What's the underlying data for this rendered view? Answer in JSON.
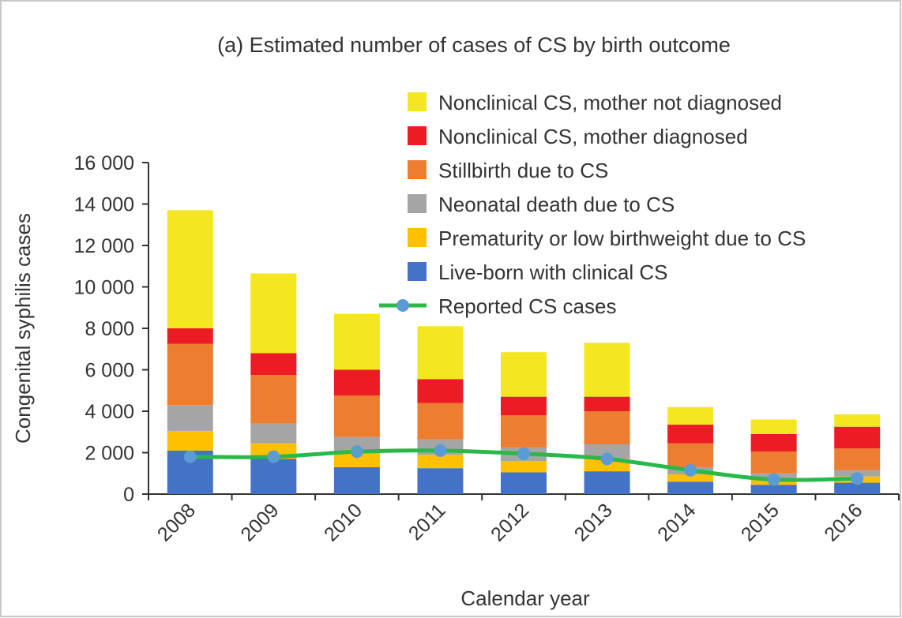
{
  "chart_data": {
    "type": "bar",
    "stacked": true,
    "title": "(a) Estimated number of cases of CS by birth outcome",
    "xlabel": "Calendar year",
    "ylabel": "Congenital syphilis cases",
    "ylim": [
      0,
      16000
    ],
    "yticks": [
      0,
      2000,
      4000,
      6000,
      8000,
      10000,
      12000,
      14000,
      16000
    ],
    "ytick_labels": [
      "0",
      "2 000",
      "4 000",
      "6 000",
      "8 000",
      "10 000",
      "12 000",
      "14 000",
      "16 000"
    ],
    "categories": [
      "2008",
      "2009",
      "2010",
      "2011",
      "2012",
      "2013",
      "2014",
      "2015",
      "2016"
    ],
    "legend_position": "top-right",
    "grid": false,
    "series": [
      {
        "name": "Live-born with clinical CS",
        "color": "#4472c4",
        "values": [
          2100,
          1700,
          1300,
          1250,
          1050,
          1100,
          600,
          450,
          550
        ]
      },
      {
        "name": "Prematurity or low birthweight due to CS",
        "color": "#ffc000",
        "values": [
          950,
          750,
          650,
          650,
          550,
          600,
          350,
          250,
          300
        ]
      },
      {
        "name": "Neonatal death due to CS",
        "color": "#a5a5a5",
        "values": [
          1250,
          950,
          800,
          750,
          650,
          700,
          350,
          300,
          300
        ]
      },
      {
        "name": "Stillbirth due to CS",
        "color": "#ed7d31",
        "values": [
          2950,
          2350,
          2000,
          1750,
          1550,
          1600,
          1150,
          1050,
          1050
        ]
      },
      {
        "name": "Nonclinical CS, mother diagnosed",
        "color": "#ec1c24",
        "values": [
          750,
          1050,
          1250,
          1150,
          900,
          700,
          900,
          850,
          1050
        ]
      },
      {
        "name": "Nonclinical CS, mother not diagnosed",
        "color": "#f4e620",
        "values": [
          5700,
          3850,
          2700,
          2550,
          2150,
          2600,
          850,
          700,
          600
        ]
      }
    ],
    "line": {
      "name": "Reported CS cases",
      "color": "#2ab84a",
      "marker_color": "#5b9bd5",
      "values": [
        1800,
        1800,
        2050,
        2100,
        1950,
        1700,
        1150,
        700,
        750
      ]
    }
  }
}
